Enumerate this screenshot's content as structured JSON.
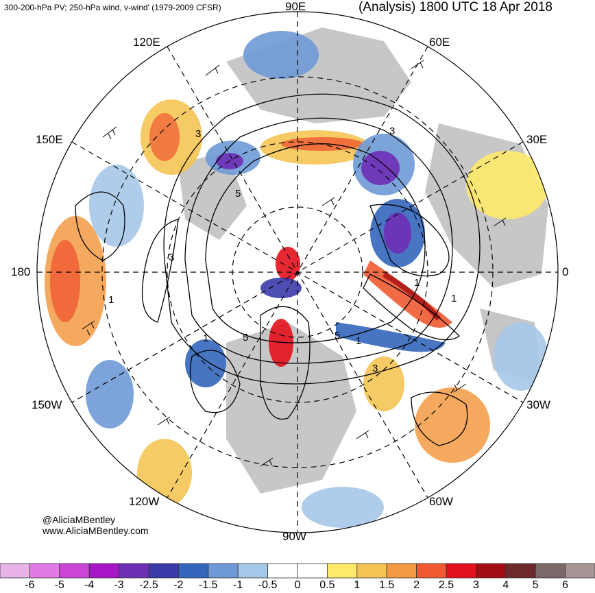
{
  "header": {
    "left_title": "300-200-hPa PV; 250-hPa wind, v-wind' (1979-2009 CFSR)",
    "right_title": "(Analysis) 1800 UTC 18 Apr 2018"
  },
  "longitude_labels": {
    "lon_90e": "90E",
    "lon_60e": "60E",
    "lon_120e": "120E",
    "lon_150e": "150E",
    "lon_30e": "30E",
    "lon_180": "180",
    "lon_0": "0",
    "lon_150w": "150W",
    "lon_30w": "30W",
    "lon_120w": "120W",
    "lon_60w": "60W",
    "lon_90w": "90W"
  },
  "credits": {
    "handle": "@AliciaMBentley",
    "website": "www.AliciaMBentley.com"
  },
  "colorbar": {
    "colors": [
      "#e8b4e8",
      "#e07ae6",
      "#cc44d6",
      "#a616c6",
      "#6e2fb6",
      "#3a3aaa",
      "#3366bb",
      "#6e99d6",
      "#a6c8e8",
      "#ffffff",
      "#ffffff",
      "#ffe96a",
      "#f5c453",
      "#f39a43",
      "#ef5a32",
      "#e3111d",
      "#a30c12",
      "#6e2a2a",
      "#7a6a6a",
      "#a89494"
    ],
    "labels": [
      "-6",
      "-5",
      "-4",
      "-3",
      "-2.5",
      "-2",
      "-1.5",
      "-1",
      "-0.5",
      "0",
      "0.5",
      "1",
      "1.5",
      "2",
      "2.5",
      "3",
      "4",
      "5",
      "6"
    ]
  },
  "contour_labels": [
    "3",
    "3",
    "5",
    "3",
    "1",
    "1",
    "5",
    "5",
    "1",
    "1",
    "3",
    "1"
  ],
  "field_colors": {
    "negative_strong": "#5a2bb0",
    "negative": "#3366bb",
    "negative_weak": "#a6c8e8",
    "positive_weak": "#ffe96a",
    "positive": "#f39a43",
    "positive_strong": "#e3111d",
    "land": "#bdbdbd"
  }
}
